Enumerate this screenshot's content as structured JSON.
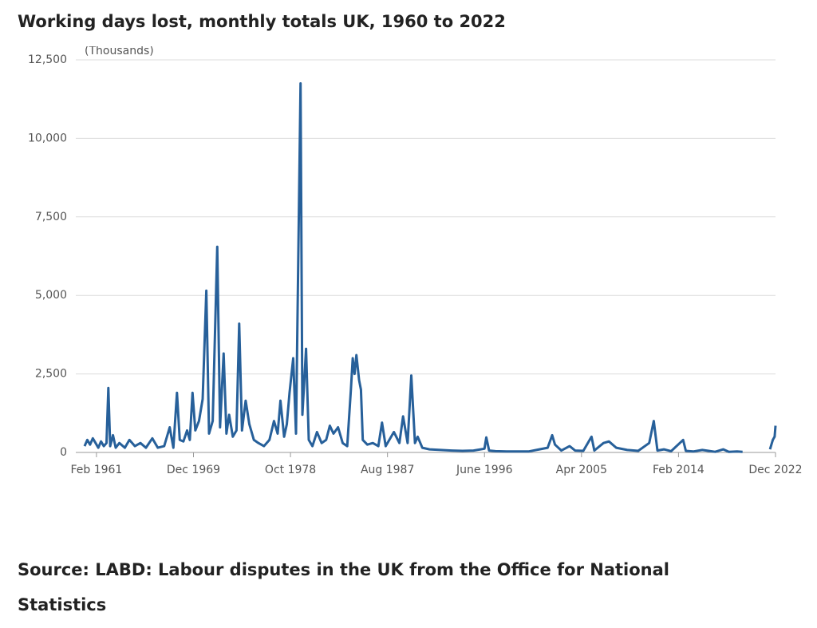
{
  "chart_data": {
    "type": "line",
    "title": "Working days lost, monthly totals UK, 1960 to 2022",
    "y_label": "(Thousands)",
    "source": "Source: LABD: Labour disputes in the UK from the Office for National Statistics",
    "xlim": [
      "1960-01",
      "2022-12"
    ],
    "ylim": [
      0,
      12500
    ],
    "yticks": [
      0,
      {
        "value": 2500,
        "label": "2,500"
      },
      {
        "value": 5000,
        "label": "5,000"
      },
      {
        "value": 7500,
        "label": "7,500"
      },
      {
        "value": 10000,
        "label": "10,000"
      },
      {
        "value": 12500,
        "label": "12,500"
      }
    ],
    "xticks": [
      {
        "value": "1961-02",
        "label": "Feb 1961"
      },
      {
        "value": "1969-12",
        "label": "Dec 1969"
      },
      {
        "value": "1978-10",
        "label": "Oct 1978"
      },
      {
        "value": "1987-08",
        "label": "Aug 1987"
      },
      {
        "value": "1996-06",
        "label": "June 1996"
      },
      {
        "value": "2005-04",
        "label": "Apr 2005"
      },
      {
        "value": "2014-02",
        "label": "Feb 2014"
      },
      {
        "value": "2022-12",
        "label": "Dec 2022"
      }
    ],
    "grid": true,
    "series": [
      {
        "name": "Working days lost",
        "color": "#27609a",
        "x": [
          "1960-01",
          "1960-04",
          "1960-07",
          "1960-10",
          "1961-01",
          "1961-04",
          "1961-07",
          "1961-10",
          "1962-01",
          "1962-03",
          "1962-05",
          "1962-08",
          "1962-11",
          "1963-03",
          "1963-09",
          "1964-02",
          "1964-08",
          "1965-02",
          "1965-08",
          "1966-03",
          "1966-09",
          "1967-04",
          "1967-10",
          "1968-02",
          "1968-06",
          "1968-09",
          "1969-01",
          "1969-05",
          "1969-08",
          "1969-11",
          "1970-02",
          "1970-06",
          "1970-10",
          "1971-02",
          "1971-05",
          "1971-09",
          "1972-02",
          "1972-05",
          "1972-09",
          "1972-12",
          "1973-03",
          "1973-07",
          "1973-11",
          "1974-02",
          "1974-05",
          "1974-09",
          "1975-01",
          "1975-06",
          "1975-11",
          "1976-05",
          "1976-11",
          "1977-04",
          "1977-08",
          "1977-11",
          "1978-03",
          "1978-06",
          "1978-09",
          "1979-01",
          "1979-04",
          "1979-09",
          "1979-11",
          "1980-03",
          "1980-06",
          "1980-10",
          "1981-03",
          "1981-08",
          "1982-01",
          "1982-05",
          "1982-09",
          "1983-02",
          "1983-07",
          "1983-12",
          "1984-04",
          "1984-06",
          "1984-08",
          "1984-10",
          "1985-01",
          "1985-03",
          "1985-05",
          "1985-10",
          "1986-04",
          "1986-10",
          "1987-02",
          "1987-06",
          "1988-03",
          "1988-09",
          "1989-01",
          "1989-06",
          "1989-10",
          "1990-02",
          "1990-05",
          "1990-10",
          "1991-06",
          "1992-06",
          "1993-06",
          "1994-06",
          "1995-06",
          "1996-06",
          "1996-08",
          "1996-11",
          "1997-06",
          "1998-06",
          "1999-06",
          "2000-06",
          "2001-06",
          "2002-03",
          "2002-08",
          "2002-11",
          "2003-06",
          "2004-03",
          "2004-09",
          "2005-06",
          "2006-03",
          "2006-06",
          "2007-04",
          "2007-10",
          "2008-06",
          "2009-06",
          "2010-06",
          "2011-06",
          "2011-11",
          "2012-03",
          "2012-10",
          "2013-06",
          "2014-07",
          "2014-10",
          "2015-06",
          "2016-04",
          "2017-06",
          "2018-03",
          "2018-09",
          "2019-06",
          "2019-12",
          "2021-06",
          "2022-06",
          "2022-09",
          "2022-11",
          "2022-12"
        ],
        "values": [
          200,
          400,
          250,
          450,
          300,
          150,
          350,
          200,
          300,
          2050,
          200,
          550,
          150,
          300,
          150,
          400,
          200,
          300,
          150,
          450,
          150,
          200,
          800,
          150,
          1900,
          400,
          350,
          700,
          400,
          1900,
          700,
          1000,
          1700,
          5150,
          600,
          1000,
          6550,
          800,
          3150,
          600,
          1200,
          500,
          700,
          4100,
          700,
          1650,
          900,
          400,
          300,
          200,
          400,
          1000,
          600,
          1650,
          500,
          900,
          1900,
          3000,
          600,
          11750,
          1200,
          3300,
          400,
          200,
          650,
          300,
          400,
          850,
          600,
          800,
          300,
          200,
          2000,
          3000,
          2500,
          3100,
          2300,
          2000,
          400,
          250,
          300,
          200,
          950,
          200,
          650,
          300,
          1150,
          300,
          2450,
          300,
          500,
          150,
          100,
          80,
          60,
          50,
          60,
          120,
          480,
          60,
          40,
          30,
          30,
          30,
          100,
          150,
          550,
          250,
          60,
          200,
          60,
          50,
          500,
          60,
          300,
          350,
          150,
          80,
          50,
          300,
          1000,
          60,
          100,
          40,
          400,
          50,
          30,
          80,
          20,
          100,
          20,
          30,
          20,
          null,
          100,
          400,
          500,
          850
        ]
      }
    ]
  }
}
